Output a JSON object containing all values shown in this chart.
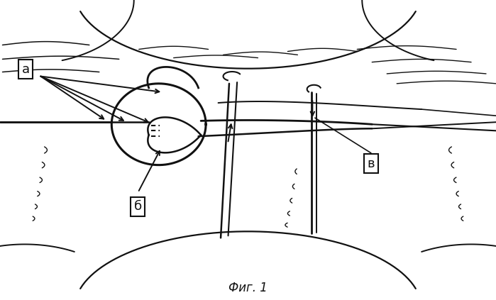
{
  "title": "Фиг. 1",
  "bg_color": "#ffffff",
  "line_color": "#111111",
  "label_a": "а",
  "label_b": "б",
  "label_v": "в",
  "figsize": [
    6.99,
    4.23
  ],
  "dpi": 100
}
